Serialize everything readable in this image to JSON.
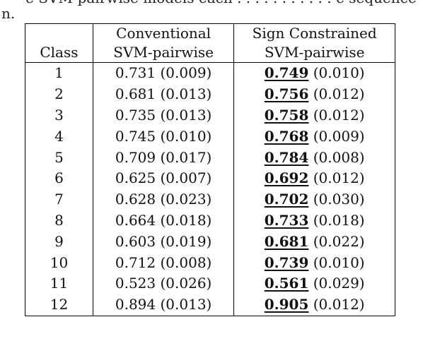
{
  "context": {
    "line1": "e   SVM-pairwise models each . . . .  . . . . . .  .  e  sequence  . . .",
    "line2": "n."
  },
  "table": {
    "headers": {
      "class_top": "",
      "class_bottom": "Class",
      "conv_top": "Conventional",
      "conv_bottom": "SVM-pairwise",
      "sign_top": "Sign Constrained",
      "sign_bottom": "SVM-pairwise"
    },
    "rows": [
      {
        "class": "1",
        "conv": "0.731 (0.009)",
        "sign_best": "0.749",
        "sign_sd": " (0.010)"
      },
      {
        "class": "2",
        "conv": "0.681 (0.013)",
        "sign_best": "0.756",
        "sign_sd": " (0.012)"
      },
      {
        "class": "3",
        "conv": "0.735 (0.013)",
        "sign_best": "0.758",
        "sign_sd": " (0.012)"
      },
      {
        "class": "4",
        "conv": "0.745 (0.010)",
        "sign_best": "0.768",
        "sign_sd": " (0.009)"
      },
      {
        "class": "5",
        "conv": "0.709 (0.017)",
        "sign_best": "0.784",
        "sign_sd": " (0.008)"
      },
      {
        "class": "6",
        "conv": "0.625 (0.007)",
        "sign_best": "0.692",
        "sign_sd": " (0.012)"
      },
      {
        "class": "7",
        "conv": "0.628 (0.023)",
        "sign_best": "0.702",
        "sign_sd": " (0.030)"
      },
      {
        "class": "8",
        "conv": "0.664 (0.018)",
        "sign_best": "0.733",
        "sign_sd": " (0.018)"
      },
      {
        "class": "9",
        "conv": "0.603 (0.019)",
        "sign_best": "0.681",
        "sign_sd": " (0.022)"
      },
      {
        "class": "10",
        "conv": "0.712 (0.008)",
        "sign_best": "0.739",
        "sign_sd": " (0.010)"
      },
      {
        "class": "11",
        "conv": "0.523 (0.026)",
        "sign_best": "0.561",
        "sign_sd": " (0.029)"
      },
      {
        "class": "12",
        "conv": "0.894 (0.013)",
        "sign_best": "0.905",
        "sign_sd": " (0.012)"
      }
    ]
  }
}
